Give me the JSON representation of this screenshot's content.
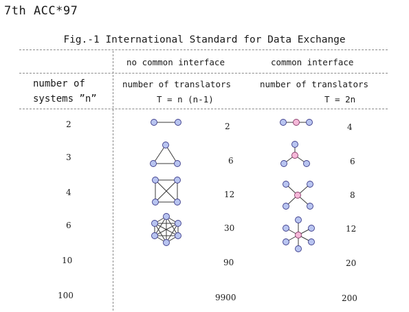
{
  "header": "7th ACC*97",
  "figure": {
    "title": "Fig.-1 International Standard for Data Exchange",
    "col_no_common": "no common interface",
    "col_common": "common interface",
    "row_label_line1": "number of",
    "row_label_line2": "systems ”n”",
    "translators_label": "number of translators",
    "formula_no_common": "T = n (n-1)",
    "formula_common": "T = 2n",
    "rows": [
      {
        "n": "2",
        "t_no_common": "2",
        "t_common": "4"
      },
      {
        "n": "3",
        "t_no_common": "6",
        "t_common": "6"
      },
      {
        "n": "4",
        "t_no_common": "12",
        "t_common": "8"
      },
      {
        "n": "6",
        "t_no_common": "30",
        "t_common": "12"
      },
      {
        "n": "10",
        "t_no_common": "90",
        "t_common": "20"
      },
      {
        "n": "100",
        "t_no_common": "9900",
        "t_common": "200"
      }
    ]
  },
  "colors": {
    "node_fill": "#b8c4f0",
    "hub_fill": "#f4b8d8"
  }
}
